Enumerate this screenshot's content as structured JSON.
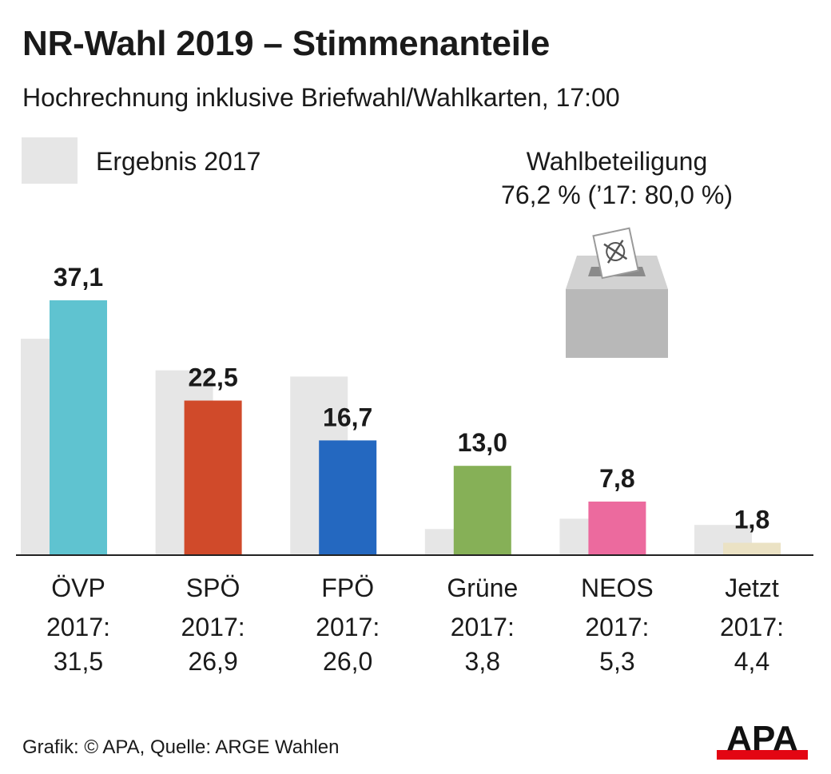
{
  "header": {
    "title": "NR-Wahl 2019 – Stimmenanteile",
    "subtitle": "Hochrechnung inklusive Briefwahl/Wahlkarten, 17:00"
  },
  "legend": {
    "label": "Ergebnis 2017",
    "color": "#e6e6e6"
  },
  "turnout": {
    "label": "Wahlbeteiligung",
    "value": "76,2 % (’17: 80,0 %)"
  },
  "footer": {
    "credit": "Grafik: © APA, Quelle: ARGE Wahlen",
    "logo_text": "APA"
  },
  "chart_data": {
    "type": "bar",
    "categories": [
      "ÖVP",
      "SPÖ",
      "FPÖ",
      "Grüne",
      "NEOS",
      "Jetzt"
    ],
    "series": [
      {
        "name": "Ergebnis 2017",
        "values": [
          31.5,
          26.9,
          26.0,
          3.8,
          5.3,
          4.4
        ],
        "color": "#e6e6e6"
      },
      {
        "values": [
          37.1,
          22.5,
          16.7,
          13.0,
          7.8,
          1.8
        ],
        "colors": [
          "#5fc3d0",
          "#d04a2a",
          "#2468c0",
          "#86b057",
          "#ec6a9e",
          "#ebe2c4"
        ]
      }
    ],
    "value_labels": [
      "37,1",
      "22,5",
      "16,7",
      "13,0",
      "7,8",
      "1,8"
    ],
    "prior_prefix": "2017:",
    "prior_labels": [
      "31,5",
      "26,9",
      "26,0",
      "3,8",
      "5,3",
      "4,4"
    ],
    "ylim": [
      0,
      40
    ],
    "grid": false
  }
}
